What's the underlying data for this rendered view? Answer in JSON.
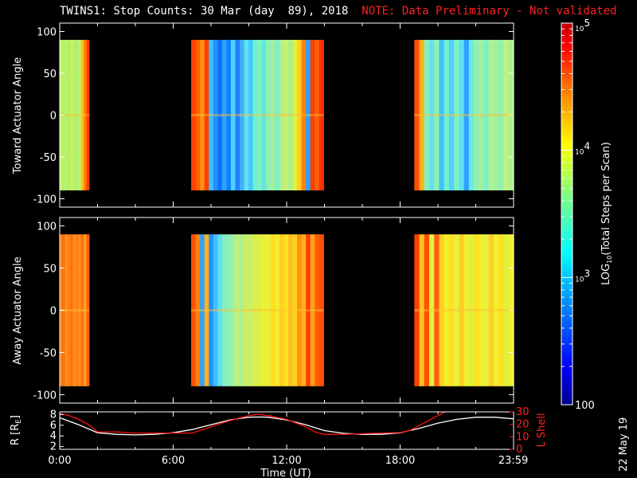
{
  "title": {
    "main": "TWINS1: Stop Counts: 30 Mar (day  89), 2018",
    "note": "NOTE: Data Preliminary - Not validated"
  },
  "date_stamp": "22 May 19",
  "colorbar": {
    "label": "LOG10(Total Steps per Scan)",
    "label_parts": [
      "LOG",
      "10",
      "(Total Steps per Scan)"
    ],
    "scale": "log",
    "range": [
      100,
      100000
    ],
    "ticks": [
      {
        "base": "10",
        "exp": "5",
        "value": 100000
      },
      {
        "base": "10",
        "exp": "4",
        "value": 10000
      },
      {
        "base": "10",
        "exp": "3",
        "value": 1000
      },
      {
        "base": "100",
        "exp": "",
        "value": 100
      }
    ],
    "colormap": [
      "#00008f",
      "#0000ff",
      "#0080ff",
      "#00ffff",
      "#80ff80",
      "#ffff00",
      "#ff8000",
      "#ff0000",
      "#800000"
    ]
  },
  "chart_data": [
    {
      "type": "heatmap",
      "panel": "toward",
      "ylabel": "Toward Actuator Angle",
      "ylim": [
        -110,
        110
      ],
      "yticks": [
        100,
        50,
        0,
        -50,
        -100
      ],
      "xlim": [
        0,
        24
      ],
      "data_y_range": [
        -90,
        90
      ],
      "background": "#000000",
      "blocks": [
        {
          "start": 0.0,
          "end": 1.55,
          "column_colors": [
            "#c8f060",
            "#b0f070",
            "#c0f060",
            "#a8f080",
            "#d0f050",
            "#b8f068",
            "#a0f088",
            "#c8f058",
            "#ffc020",
            "#ff8010",
            "#ff4000"
          ]
        },
        {
          "start": 6.95,
          "end": 13.95,
          "column_colors": [
            "#ff4000",
            "#ff6000",
            "#ff9010",
            "#ff4000",
            "#40c0ff",
            "#2090ff",
            "#1070ff",
            "#30a0ff",
            "#1080ff",
            "#50d0ff",
            "#2080ff",
            "#40b0ff",
            "#60e0f0",
            "#40c8ff",
            "#70f0d0",
            "#80f0c0",
            "#60e8e0",
            "#90f0b0",
            "#a0f0a0",
            "#80f0c0",
            "#b0f090",
            "#c8f070",
            "#a8f090",
            "#e0f040",
            "#ffd020",
            "#ff8010",
            "#30a0ff",
            "#ff4000",
            "#ff6010",
            "#ff3000"
          ]
        },
        {
          "start": 18.75,
          "end": 24.0,
          "column_colors": [
            "#ff5000",
            "#ffb020",
            "#80f0c0",
            "#60e0f0",
            "#90f0b0",
            "#40c0ff",
            "#70f0d0",
            "#50d0ff",
            "#80f0c0",
            "#60e0f0",
            "#30a0ff",
            "#70e8e0",
            "#90f0b0",
            "#a0f0a0",
            "#80f0c0",
            "#b0f090",
            "#a0f0a0",
            "#90f0b0",
            "#c0f080",
            "#a8f090"
          ]
        }
      ]
    },
    {
      "type": "heatmap",
      "panel": "away",
      "ylabel": "Away Actuator Angle",
      "ylim": [
        -110,
        110
      ],
      "yticks": [
        100,
        50,
        0,
        -50,
        -100
      ],
      "xlim": [
        0,
        24
      ],
      "data_y_range": [
        -90,
        90
      ],
      "background": "#000000",
      "blocks": [
        {
          "start": 0.0,
          "end": 1.55,
          "column_colors": [
            "#ff8010",
            "#ff7010",
            "#ff9020",
            "#ff8010",
            "#ff7010",
            "#ff9020",
            "#ff8010",
            "#ff9020",
            "#ff7010",
            "#ffa020",
            "#ff6010"
          ]
        },
        {
          "start": 6.95,
          "end": 13.95,
          "column_colors": [
            "#ff5000",
            "#ff8010",
            "#30a0ff",
            "#ffb020",
            "#2090ff",
            "#40c0ff",
            "#60e0f0",
            "#80f0c0",
            "#90f0b0",
            "#a0f0a0",
            "#c0f080",
            "#b0f090",
            "#d0f060",
            "#c8f070",
            "#e0f040",
            "#d8f050",
            "#f0f030",
            "#e8f040",
            "#ffe020",
            "#f0f030",
            "#ffd020",
            "#ffe020",
            "#ffc020",
            "#ffd020",
            "#ff9010",
            "#ffb020",
            "#ff4000",
            "#ffa020",
            "#ff6000",
            "#ff5000"
          ]
        },
        {
          "start": 18.75,
          "end": 24.0,
          "column_colors": [
            "#ff4000",
            "#ffc020",
            "#ff5000",
            "#e0f040",
            "#ff6010",
            "#ffd020",
            "#f0f030",
            "#ffe020",
            "#e8f040",
            "#ffd020",
            "#f0f030",
            "#e0f040",
            "#ffe020",
            "#f0f030",
            "#e8f040",
            "#ffd020",
            "#f0f030",
            "#ffe020",
            "#e0f040",
            "#f0f030"
          ]
        }
      ]
    },
    {
      "type": "line",
      "panel": "ephemeris",
      "xlabel": "Time (UT)",
      "xlim": [
        0,
        24
      ],
      "xticks": [
        {
          "v": 0,
          "label": "0:00"
        },
        {
          "v": 6,
          "label": "6:00"
        },
        {
          "v": 12,
          "label": "12:00"
        },
        {
          "v": 18,
          "label": "18:00"
        },
        {
          "v": 23.983,
          "label": "23:59"
        }
      ],
      "ylabel_left": "R [RE]",
      "ylabel_left_parts": [
        "R [R",
        "E",
        "]"
      ],
      "ylim_left": [
        1.5,
        8.5
      ],
      "yticks_left": [
        2,
        4,
        6,
        8
      ],
      "ylabel_right": "L Shell",
      "ylim_right": [
        0,
        30
      ],
      "yticks_right": [
        0,
        10,
        20,
        30
      ],
      "series": [
        {
          "name": "R [RE]",
          "axis": "left",
          "color": "#ffffff",
          "x": [
            0,
            1,
            2,
            3,
            4,
            5,
            6,
            7,
            8,
            9,
            10,
            10.5,
            11,
            12,
            13,
            14,
            15,
            16,
            17,
            18,
            19,
            20,
            21,
            22,
            23,
            24
          ],
          "y": [
            7.4,
            6.1,
            4.6,
            4.3,
            4.2,
            4.3,
            4.6,
            5.2,
            6.1,
            7.0,
            7.5,
            7.55,
            7.5,
            7.0,
            6.1,
            5.0,
            4.5,
            4.3,
            4.3,
            4.6,
            5.4,
            6.4,
            7.1,
            7.5,
            7.5,
            7.2
          ]
        },
        {
          "name": "L Shell",
          "axis": "right",
          "color": "#ff1010",
          "x": [
            0,
            0.5,
            1,
            1.5,
            2,
            3,
            4,
            5,
            6,
            6.5,
            7,
            8,
            9,
            10,
            10.5,
            11,
            12,
            13,
            13.5,
            14,
            15,
            16,
            17,
            18,
            18.5,
            19,
            19.5,
            20,
            20.5
          ],
          "y": [
            29,
            27,
            24,
            20,
            14,
            14,
            13,
            13,
            13,
            13,
            13,
            18,
            23,
            27,
            28,
            27,
            24,
            18,
            14,
            12,
            12,
            12.5,
            13,
            13.5,
            15,
            19,
            23,
            27,
            31
          ]
        }
      ]
    }
  ]
}
